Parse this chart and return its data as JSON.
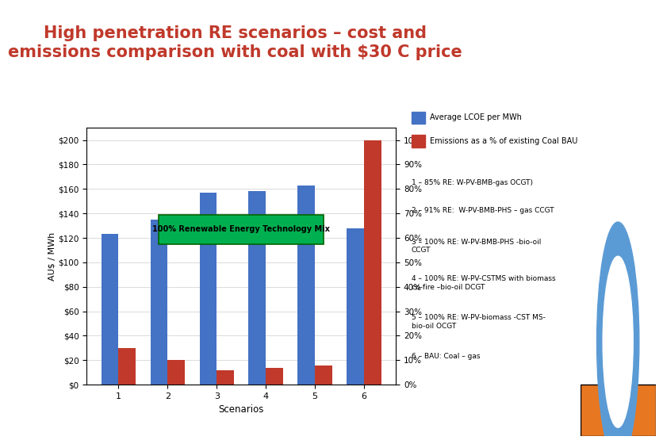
{
  "title_line1": "High penetration RE scenarios – cost and",
  "title_line2": "emissions comparison with coal with $30 C price",
  "title_color": "#C0392B",
  "background_color": "#FFFFFF",
  "scenarios": [
    1,
    2,
    3,
    4,
    5,
    6
  ],
  "lcoe_values": [
    123,
    135,
    157,
    158,
    163,
    128
  ],
  "emissions_pct": [
    15,
    10,
    6,
    7,
    8,
    100
  ],
  "bar_width": 0.35,
  "blue_color": "#4472C4",
  "red_color": "#C0392B",
  "green_box_color": "#00B050",
  "green_box_text": "100% Renewable Energy Technology Mix",
  "ylabel_left": "AU$ / MWh",
  "xlabel": "Scenarios",
  "ylim_left": [
    0,
    210
  ],
  "ylim_right": [
    0,
    105
  ],
  "yticks_left": [
    0,
    20,
    40,
    60,
    80,
    100,
    120,
    140,
    160,
    180,
    200
  ],
  "ytick_labels_left": [
    "$0",
    "$20",
    "$40",
    "$60",
    "$80",
    "$100",
    "$120",
    "$140",
    "$160",
    "$180",
    "$200"
  ],
  "yticks_right": [
    0,
    10,
    20,
    30,
    40,
    50,
    60,
    70,
    80,
    90,
    100
  ],
  "ytick_labels_right": [
    "0%",
    "10%",
    "20%",
    "30%",
    "40%",
    "50%",
    "60%",
    "70%",
    "80%",
    "90%",
    "100%"
  ],
  "legend_labels": [
    "Average LCOE per MWh",
    "Emissions as a % of existing Coal BAU"
  ],
  "scenario_labels": [
    "1 – 85% RE: W-PV-BMB-gas OCGT)",
    "2 – 91% RE:  W-PV-BMB-PHS – gas CCGT",
    "3 – 100% RE: W-PV-BMB-PHS -bio-oil\nCCGT",
    "4 – 100% RE: W-PV-CSTMS with biomass\nco-fire –bio-oil DCGT",
    "5 – 100% RE: W-PV-biomass -CST MS-\nbio-oil OCGT",
    "6 – BAU: Coal – gas"
  ],
  "grid_color": "#CCCCCC",
  "sidebar_color": "#4472C4",
  "orange_color": "#E87722"
}
